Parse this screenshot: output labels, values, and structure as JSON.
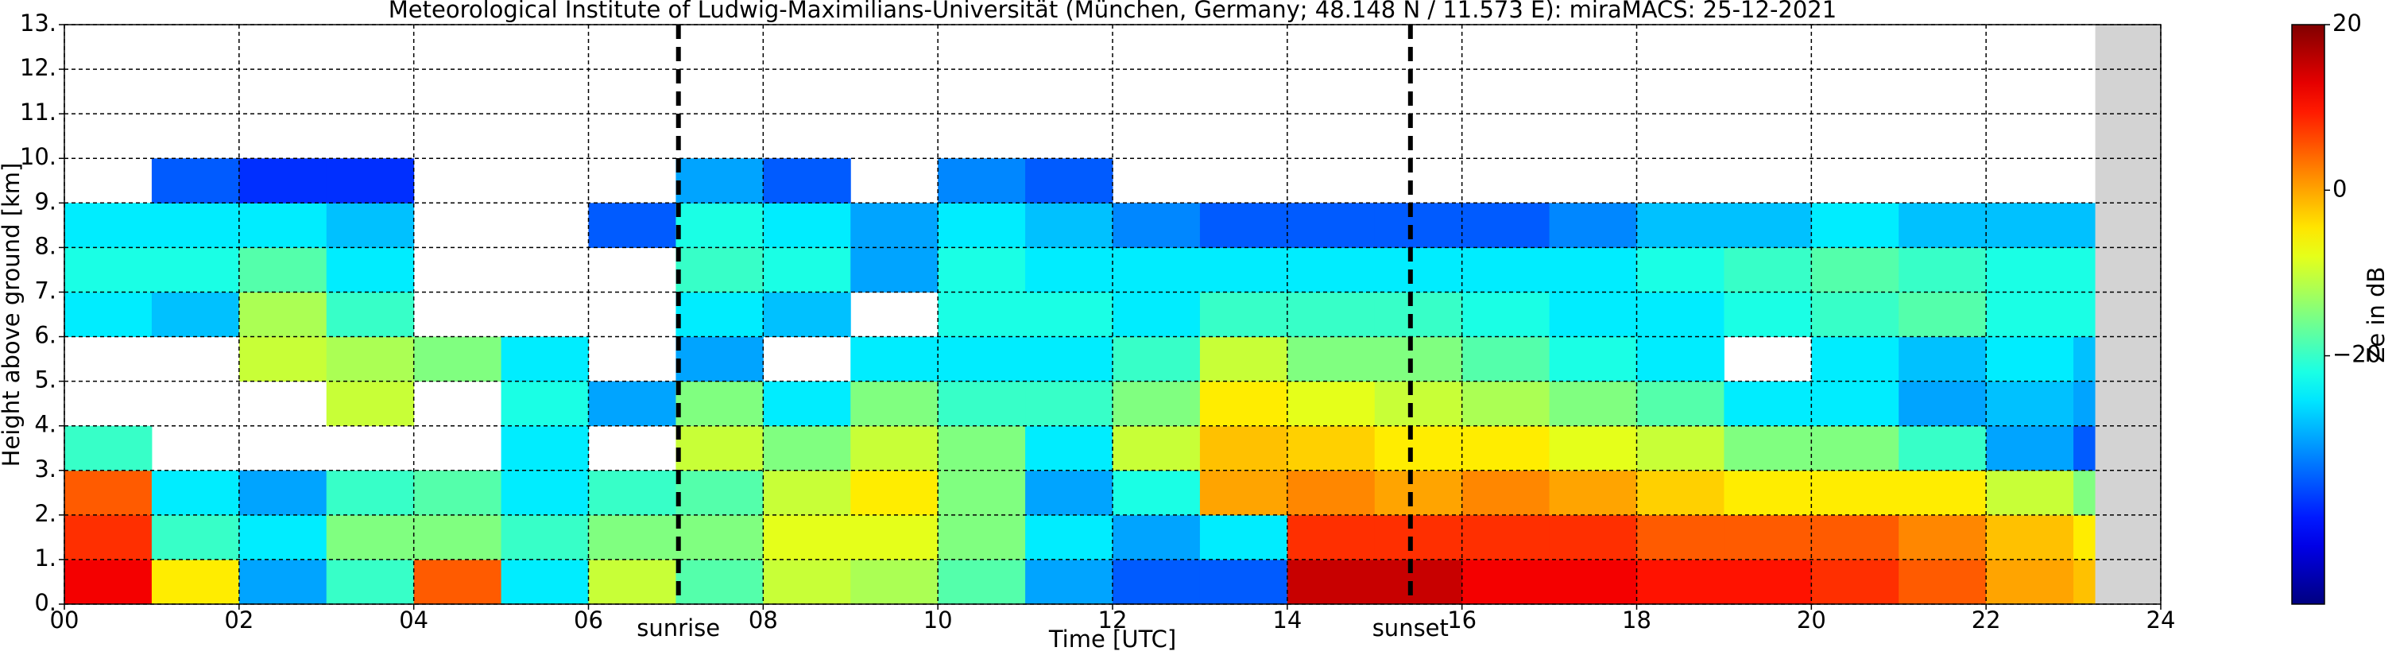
{
  "chart_data": {
    "type": "heatmap",
    "title": "Meteorological Institute of Ludwig-Maximilians-Universität (München, Germany; 48.148 N / 11.573 E):    miraMACS: 25-12-2021",
    "x_label": "Time [UTC]",
    "y_label": "Height above ground [km]",
    "colorbar_label": "Ze in dB",
    "colormap": "jet",
    "grid": true,
    "no_data_color": "#d3d3d3",
    "xlim": [
      0,
      24
    ],
    "xticks": [
      {
        "value": 0,
        "label": "00"
      },
      {
        "value": 2,
        "label": "02"
      },
      {
        "value": 4,
        "label": "04"
      },
      {
        "value": 6,
        "label": "06"
      },
      {
        "value": 8,
        "label": "08"
      },
      10,
      12,
      14,
      16,
      18,
      20,
      22,
      24
    ],
    "ylim": [
      0,
      13
    ],
    "yticks": [
      {
        "value": 0,
        "label": "0."
      },
      {
        "value": 1,
        "label": "1."
      },
      {
        "value": 2,
        "label": "2."
      },
      {
        "value": 3,
        "label": "3."
      },
      {
        "value": 4,
        "label": "4."
      },
      {
        "value": 5,
        "label": "5."
      },
      {
        "value": 6,
        "label": "6."
      },
      {
        "value": 7,
        "label": "7."
      },
      {
        "value": 8,
        "label": "8."
      },
      {
        "value": 9,
        "label": "9."
      },
      {
        "value": 10,
        "label": "10."
      },
      {
        "value": 11,
        "label": "11."
      },
      {
        "value": 12,
        "label": "12."
      },
      {
        "value": 13,
        "label": "13."
      }
    ],
    "clim": [
      -50,
      20
    ],
    "cticks": [
      {
        "value": -20,
        "label": "−20"
      },
      0,
      20
    ],
    "annotations": [
      {
        "text": "sunrise",
        "x": 7.03
      },
      {
        "text": "sunset",
        "x": 15.41
      }
    ],
    "xbins": [
      0,
      1,
      2,
      3,
      4,
      5,
      6,
      7,
      8,
      9,
      10,
      11,
      12,
      13,
      14,
      15,
      16,
      17,
      18,
      19,
      20,
      21,
      22,
      23,
      23.25
    ],
    "ybins": [
      0,
      1,
      2,
      3,
      4,
      5,
      6,
      7,
      8,
      9,
      10
    ],
    "z": [
      [
        12,
        8,
        5,
        -20,
        null,
        null,
        -25,
        -22,
        -25,
        null
      ],
      [
        -5,
        -20,
        -25,
        null,
        null,
        null,
        -28,
        -22,
        -25,
        -35
      ],
      [
        -30,
        -25,
        -30,
        null,
        null,
        -10,
        -12,
        -18,
        -25,
        -38
      ],
      [
        -20,
        -15,
        -20,
        null,
        -10,
        -12,
        -20,
        -25,
        -28,
        -38
      ],
      [
        5,
        -15,
        -18,
        null,
        null,
        -15,
        null,
        null,
        null,
        null
      ],
      [
        -25,
        -20,
        -25,
        -25,
        -22,
        -25,
        null,
        null,
        null,
        null
      ],
      [
        -10,
        -15,
        -20,
        null,
        -30,
        null,
        null,
        null,
        -35,
        null
      ],
      [
        -18,
        -15,
        -18,
        -10,
        -15,
        -30,
        -25,
        -20,
        -22,
        -30
      ],
      [
        -10,
        -8,
        -10,
        -15,
        -25,
        null,
        -28,
        -22,
        -25,
        -35
      ],
      [
        -12,
        -8,
        -5,
        -10,
        -15,
        -25,
        null,
        -30,
        -30,
        null
      ],
      [
        -18,
        -15,
        -15,
        -15,
        -20,
        -25,
        -22,
        -22,
        -25,
        -32
      ],
      [
        -30,
        -25,
        -30,
        -25,
        -20,
        -25,
        -22,
        -25,
        -28,
        -35
      ],
      [
        -35,
        -30,
        -22,
        -10,
        -15,
        -20,
        -25,
        -25,
        -32,
        null
      ],
      [
        -35,
        -25,
        0,
        -2,
        -5,
        -10,
        -20,
        -25,
        -35,
        null
      ],
      [
        15,
        8,
        2,
        -3,
        -8,
        -15,
        -20,
        -25,
        -35,
        null
      ],
      [
        15,
        8,
        0,
        -5,
        -10,
        -15,
        -20,
        -25,
        -35,
        null
      ],
      [
        12,
        8,
        2,
        -5,
        -12,
        -18,
        -22,
        -25,
        -35,
        null
      ],
      [
        12,
        8,
        0,
        -8,
        -15,
        -22,
        -25,
        -25,
        -32,
        null
      ],
      [
        10,
        5,
        -3,
        -10,
        -18,
        -25,
        -25,
        -22,
        -28,
        null
      ],
      [
        10,
        5,
        -5,
        -15,
        -25,
        null,
        -22,
        -20,
        -28,
        null
      ],
      [
        8,
        5,
        -5,
        -15,
        -25,
        -25,
        -20,
        -18,
        -25,
        null
      ],
      [
        5,
        2,
        -5,
        -20,
        -30,
        -28,
        -18,
        -20,
        -28,
        null
      ],
      [
        0,
        -2,
        -10,
        -30,
        -28,
        -25,
        -22,
        -22,
        -28,
        null
      ],
      [
        -2,
        -5,
        -15,
        -35,
        -30,
        -28,
        -22,
        -22,
        -28,
        null
      ]
    ]
  }
}
